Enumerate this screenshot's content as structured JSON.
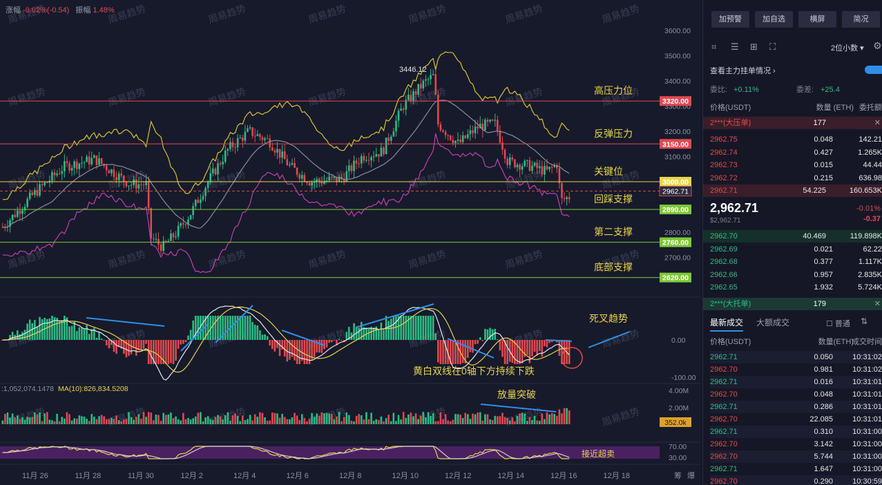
{
  "top_stats": {
    "change_label": "涨幅",
    "change_value": "-0.02%(-0.54)",
    "amp_label": "振幅",
    "amp_value": "1.48%"
  },
  "watermark": "周易趋势",
  "price_axis": {
    "ticks": [
      "3600.00",
      "3500.00",
      "3400.00",
      "3300.00",
      "3200.00",
      "3100.00",
      "3000.00",
      "2900.00",
      "2800.00",
      "2700.00"
    ]
  },
  "levels": [
    {
      "price": 3320,
      "badge": "3320.00",
      "label": "高压力位",
      "color": "#e04a4f"
    },
    {
      "price": 3150,
      "badge": "3150.00",
      "label": "反弹压力",
      "color": "#e04a4f"
    },
    {
      "price": 3000,
      "badge": "3000.00",
      "label": "关键位",
      "color": "#e8d44d"
    },
    {
      "price": 2890,
      "badge": "2890.00",
      "label": "回踩支撑",
      "color": "#7cc93a"
    },
    {
      "price": 2760,
      "badge": "2760.00",
      "label": "第二支撑",
      "color": "#7cc93a"
    },
    {
      "price": 2620,
      "badge": "2620.00",
      "label": "底部支撑",
      "color": "#7cc93a"
    }
  ],
  "current_price": {
    "value": 2962.71,
    "badge": "2962.71"
  },
  "peak_label": "3446.12",
  "macd": {
    "ticks": [
      "0.00",
      "-100.00"
    ],
    "note_death_cross": "死叉趋势",
    "note_lines": "黄白双线在0轴下方持续下跌"
  },
  "volume": {
    "ma_label": ":1,052,074.1478",
    "ma10_label": "MA(10):826,834.5208",
    "ticks": [
      "4.00M",
      "2.00M"
    ],
    "badge": "352.0k",
    "note": "放量突破"
  },
  "rsi": {
    "ticks": [
      "70.00",
      "30.00"
    ],
    "note": "接近超卖"
  },
  "date_axis": [
    "11月 26",
    "11月 28",
    "11月 30",
    "12月 2",
    "12月 4",
    "12月 6",
    "12月 8",
    "12月 10",
    "12月 12",
    "12月 14",
    "12月 16",
    "12月 18"
  ],
  "axis_corner": {
    "a": "筹",
    "b": "爆"
  },
  "side": {
    "buttons": [
      "加预警",
      "加自选",
      "横屏",
      "简况"
    ],
    "depth_select": "2位小数",
    "order_book_title": "查看主力挂单情况",
    "ratio_label": "委比:",
    "ratio_value": "+0.11%",
    "diff_label": "委差:",
    "diff_value": "+25.4",
    "ob_headers": [
      "价格(USDT)",
      "数量 (ETH)",
      "委托额"
    ],
    "ask_big": {
      "label": "2***(大压单)",
      "qty": "177"
    },
    "asks": [
      {
        "p": "2962.75",
        "q": "0.048",
        "t": "142.21"
      },
      {
        "p": "2962.74",
        "q": "0.427",
        "t": "1.265K"
      },
      {
        "p": "2962.73",
        "q": "0.015",
        "t": "44.44"
      },
      {
        "p": "2962.72",
        "q": "0.215",
        "t": "636.98"
      },
      {
        "p": "2962.71",
        "q": "54.225",
        "t": "160.653K"
      }
    ],
    "mid_price": "2,962.71",
    "mid_usd": "$2,962.71",
    "mid_pct": "-0.01%",
    "mid_chg": "-0.37",
    "bids": [
      {
        "p": "2962.70",
        "q": "40.469",
        "t": "119.898K"
      },
      {
        "p": "2962.69",
        "q": "0.021",
        "t": "62.22"
      },
      {
        "p": "2962.68",
        "q": "0.377",
        "t": "1.117K"
      },
      {
        "p": "2962.66",
        "q": "0.957",
        "t": "2.835K"
      },
      {
        "p": "2962.65",
        "q": "1.932",
        "t": "5.724K"
      }
    ],
    "bid_big": {
      "label": "2***(大托单)",
      "qty": "179"
    },
    "trade_tabs": [
      "最新成交",
      "大额成交"
    ],
    "normal_label": "普通",
    "trade_headers": [
      "价格(USDT)",
      "数量(ETH)",
      "成交时间"
    ],
    "trades": [
      {
        "p": "2962.71",
        "q": "0.050",
        "t": "10:31:02",
        "s": "g"
      },
      {
        "p": "2962.70",
        "q": "0.981",
        "t": "10:31:02",
        "s": "r"
      },
      {
        "p": "2962.71",
        "q": "0.016",
        "t": "10:31:01",
        "s": "g"
      },
      {
        "p": "2962.70",
        "q": "0.048",
        "t": "10:31:01",
        "s": "r"
      },
      {
        "p": "2962.71",
        "q": "0.286",
        "t": "10:31:01",
        "s": "g"
      },
      {
        "p": "2962.70",
        "q": "22.085",
        "t": "10:31:01",
        "s": "r"
      },
      {
        "p": "2962.71",
        "q": "0.310",
        "t": "10:31:00",
        "s": "g"
      },
      {
        "p": "2962.70",
        "q": "3.142",
        "t": "10:31:00",
        "s": "r"
      },
      {
        "p": "2962.70",
        "q": "5.744",
        "t": "10:31:00",
        "s": "r"
      },
      {
        "p": "2962.71",
        "q": "1.647",
        "t": "10:31:00",
        "s": "g"
      },
      {
        "p": "2962.70",
        "q": "0.290",
        "t": "10:30:59",
        "s": "r"
      }
    ]
  }
}
